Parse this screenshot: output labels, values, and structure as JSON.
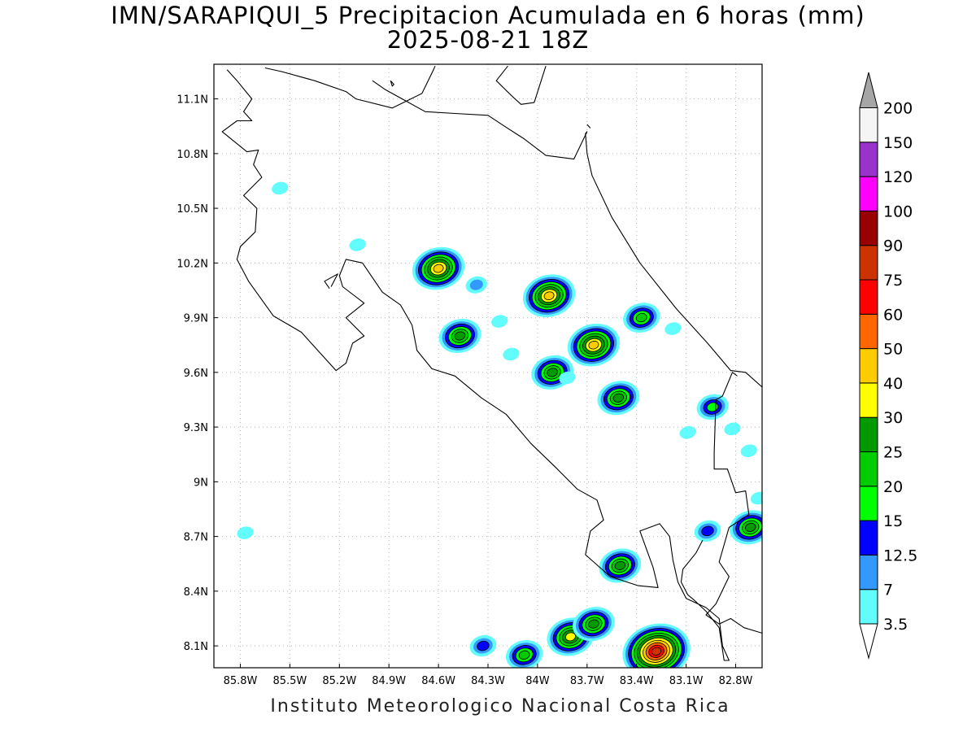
{
  "title": "IMN/SARAPIQUI_5 Precipitacion Acumulada en 6 horas (mm)",
  "subtitle": "2025-08-21 18Z",
  "footer": "Instituto Meteorologico Nacional Costa Rica",
  "map": {
    "lon_range": [
      -85.96,
      -82.64
    ],
    "lat_range": [
      7.98,
      11.29
    ],
    "grid": true,
    "lon_ticks": [
      {
        "value": -85.8,
        "label": "85.8W"
      },
      {
        "value": -85.5,
        "label": "85.5W"
      },
      {
        "value": -85.2,
        "label": "85.2W"
      },
      {
        "value": -84.9,
        "label": "84.9W"
      },
      {
        "value": -84.6,
        "label": "84.6W"
      },
      {
        "value": -84.3,
        "label": "84.3W"
      },
      {
        "value": -84.0,
        "label": "84W"
      },
      {
        "value": -83.7,
        "label": "83.7W"
      },
      {
        "value": -83.4,
        "label": "83.4W"
      },
      {
        "value": -83.1,
        "label": "83.1W"
      },
      {
        "value": -82.8,
        "label": "82.8W"
      }
    ],
    "lat_ticks": [
      {
        "value": 8.1,
        "label": "8.1N"
      },
      {
        "value": 8.4,
        "label": "8.4N"
      },
      {
        "value": 8.7,
        "label": "8.7N"
      },
      {
        "value": 9.0,
        "label": "9N"
      },
      {
        "value": 9.3,
        "label": "9.3N"
      },
      {
        "value": 9.6,
        "label": "9.6N"
      },
      {
        "value": 9.9,
        "label": "9.9N"
      },
      {
        "value": 10.2,
        "label": "10.2N"
      },
      {
        "value": 10.5,
        "label": "10.5N"
      },
      {
        "value": 10.8,
        "label": "10.8N"
      },
      {
        "value": 11.1,
        "label": "11.1N"
      }
    ],
    "coastline": [
      [
        [
          -85.88,
          11.26
        ],
        [
          -85.82,
          11.2
        ],
        [
          -85.73,
          11.1
        ],
        [
          -85.78,
          11.03
        ],
        [
          -85.73,
          10.98
        ],
        [
          -85.82,
          10.98
        ],
        [
          -85.91,
          10.92
        ],
        [
          -85.76,
          10.81
        ],
        [
          -85.69,
          10.82
        ],
        [
          -85.72,
          10.74
        ],
        [
          -85.67,
          10.67
        ],
        [
          -85.78,
          10.57
        ],
        [
          -85.7,
          10.5
        ],
        [
          -85.71,
          10.37
        ],
        [
          -85.8,
          10.29
        ],
        [
          -85.82,
          10.22
        ],
        [
          -85.75,
          10.1
        ],
        [
          -85.6,
          9.91
        ],
        [
          -85.43,
          9.82
        ],
        [
          -85.35,
          9.74
        ],
        [
          -85.22,
          9.61
        ],
        [
          -85.16,
          9.65
        ],
        [
          -85.12,
          9.76
        ],
        [
          -85.05,
          9.8
        ],
        [
          -85.16,
          9.9
        ],
        [
          -85.05,
          9.98
        ],
        [
          -85.18,
          10.07
        ],
        [
          -85.2,
          10.13
        ],
        [
          -85.16,
          10.22
        ],
        [
          -85.06,
          10.2
        ],
        [
          -84.94,
          10.04
        ],
        [
          -84.83,
          9.97
        ],
        [
          -84.76,
          9.86
        ],
        [
          -84.73,
          9.72
        ],
        [
          -84.64,
          9.62
        ],
        [
          -84.5,
          9.58
        ],
        [
          -84.34,
          9.46
        ],
        [
          -84.19,
          9.37
        ],
        [
          -84.04,
          9.21
        ],
        [
          -83.88,
          9.07
        ],
        [
          -83.76,
          8.96
        ],
        [
          -83.64,
          8.9
        ],
        [
          -83.6,
          8.79
        ],
        [
          -83.68,
          8.73
        ],
        [
          -83.71,
          8.6
        ],
        [
          -83.56,
          8.48
        ],
        [
          -83.39,
          8.43
        ],
        [
          -83.27,
          8.42
        ],
        [
          -83.3,
          8.53
        ],
        [
          -83.38,
          8.73
        ],
        [
          -83.26,
          8.77
        ],
        [
          -83.2,
          8.7
        ],
        [
          -83.18,
          8.57
        ],
        [
          -83.15,
          8.45
        ],
        [
          -83.1,
          8.36
        ],
        [
          -82.98,
          8.31
        ],
        [
          -82.9,
          8.25
        ],
        [
          -82.88,
          8.1
        ],
        [
          -82.84,
          8.02
        ],
        [
          -82.87,
          8.02
        ],
        [
          -82.9,
          8.2
        ],
        [
          -82.98,
          8.29
        ],
        [
          -83.05,
          8.35
        ],
        [
          -83.09,
          8.38
        ],
        [
          -83.13,
          8.45
        ],
        [
          -83.12,
          8.52
        ],
        [
          -83.04,
          8.61
        ],
        [
          -83.0,
          8.68
        ]
      ],
      [
        [
          -85.26,
          10.06
        ],
        [
          -85.29,
          10.1
        ],
        [
          -85.21,
          10.14
        ],
        [
          -85.25,
          10.07
        ]
      ],
      [
        [
          -85.0,
          11.2
        ],
        [
          -84.92,
          11.15
        ],
        [
          -84.78,
          11.08
        ],
        [
          -84.68,
          11.03
        ],
        [
          -84.5,
          11.02
        ],
        [
          -84.3,
          11.01
        ],
        [
          -84.2,
          10.95
        ],
        [
          -84.08,
          10.88
        ],
        [
          -83.95,
          10.79
        ],
        [
          -83.78,
          10.77
        ],
        [
          -83.7,
          10.92
        ],
        [
          -83.71,
          10.91
        ],
        [
          -83.7,
          10.8
        ],
        [
          -83.67,
          10.68
        ],
        [
          -83.55,
          10.45
        ],
        [
          -83.38,
          10.2
        ],
        [
          -83.16,
          9.95
        ],
        [
          -82.97,
          9.76
        ],
        [
          -82.83,
          9.61
        ],
        [
          -82.74,
          9.6
        ],
        [
          -82.64,
          9.52
        ]
      ],
      [
        [
          -85.65,
          11.27
        ],
        [
          -85.55,
          11.25
        ],
        [
          -85.35,
          11.2
        ],
        [
          -85.16,
          11.14
        ],
        [
          -85.1,
          11.1
        ],
        [
          -84.88,
          11.05
        ],
        [
          -84.7,
          11.13
        ],
        [
          -84.63,
          11.26
        ],
        [
          -84.62,
          11.28
        ]
      ],
      [
        [
          -84.18,
          11.28
        ],
        [
          -84.25,
          11.2
        ],
        [
          -84.16,
          11.12
        ],
        [
          -84.1,
          11.07
        ],
        [
          -84.02,
          11.08
        ],
        [
          -83.95,
          11.28
        ]
      ],
      [
        [
          -83.7,
          10.96
        ],
        [
          -83.68,
          10.94
        ]
      ],
      [
        [
          -84.89,
          11.2
        ],
        [
          -84.87,
          11.18
        ],
        [
          -84.88,
          11.17
        ],
        [
          -84.89,
          11.2
        ]
      ],
      [
        [
          -82.79,
          9.58
        ],
        [
          -82.82,
          9.6
        ],
        [
          -82.88,
          9.47
        ],
        [
          -82.92,
          9.45
        ],
        [
          -82.93,
          9.16
        ],
        [
          -82.93,
          9.07
        ],
        [
          -82.85,
          9.07
        ],
        [
          -82.8,
          8.94
        ],
        [
          -82.74,
          8.95
        ],
        [
          -82.72,
          8.82
        ],
        [
          -82.84,
          8.75
        ],
        [
          -82.9,
          8.56
        ],
        [
          -82.84,
          8.48
        ],
        [
          -82.92,
          8.33
        ],
        [
          -82.98,
          8.27
        ],
        [
          -82.9,
          8.22
        ],
        [
          -82.83,
          8.25
        ],
        [
          -82.75,
          8.2
        ],
        [
          -82.64,
          8.17
        ]
      ]
    ]
  },
  "colorbar": {
    "levels": [
      "3.5",
      "7",
      "12.5",
      "15",
      "20",
      "25",
      "30",
      "40",
      "50",
      "60",
      "75",
      "90",
      "100",
      "120",
      "150",
      "200"
    ],
    "colors": [
      "#62fcfc",
      "#3399ff",
      "#0000ff",
      "#00ff00",
      "#00cc00",
      "#009900",
      "#ffff00",
      "#ffcc00",
      "#ff6600",
      "#ff0000",
      "#cc3300",
      "#990000",
      "#ff00ff",
      "#9933cc",
      "#f5f5f5",
      "#a6a6a6"
    ]
  },
  "rain_cells": [
    {
      "lon": -84.6,
      "lat": 10.17,
      "value": 40
    },
    {
      "lon": -83.93,
      "lat": 10.02,
      "value": 40
    },
    {
      "lon": -83.66,
      "lat": 9.75,
      "value": 40
    },
    {
      "lon": -84.47,
      "lat": 9.8,
      "value": 25
    },
    {
      "lon": -83.91,
      "lat": 9.6,
      "value": 25
    },
    {
      "lon": -83.37,
      "lat": 9.9,
      "value": 20
    },
    {
      "lon": -83.51,
      "lat": 9.46,
      "value": 25
    },
    {
      "lon": -82.94,
      "lat": 9.41,
      "value": 15
    },
    {
      "lon": -82.71,
      "lat": 8.75,
      "value": 25
    },
    {
      "lon": -82.97,
      "lat": 8.73,
      "value": 12.5
    },
    {
      "lon": -83.5,
      "lat": 8.54,
      "value": 25
    },
    {
      "lon": -83.8,
      "lat": 8.15,
      "value": 30
    },
    {
      "lon": -83.66,
      "lat": 8.22,
      "value": 25
    },
    {
      "lon": -83.28,
      "lat": 8.07,
      "value": 75
    },
    {
      "lon": -84.08,
      "lat": 8.05,
      "value": 20
    },
    {
      "lon": -84.33,
      "lat": 8.1,
      "value": 12.5
    },
    {
      "lon": -84.37,
      "lat": 10.08,
      "value": 7
    },
    {
      "lon": -84.23,
      "lat": 9.88,
      "value": 3.5
    },
    {
      "lon": -85.09,
      "lat": 10.3,
      "value": 3.5
    },
    {
      "lon": -85.56,
      "lat": 10.61,
      "value": 3.5
    },
    {
      "lon": -85.77,
      "lat": 8.72,
      "value": 3.5
    },
    {
      "lon": -84.16,
      "lat": 9.7,
      "value": 3.5
    },
    {
      "lon": -83.82,
      "lat": 9.57,
      "value": 3.5
    },
    {
      "lon": -83.18,
      "lat": 9.84,
      "value": 3.5
    },
    {
      "lon": -82.82,
      "lat": 9.29,
      "value": 3.5
    },
    {
      "lon": -82.72,
      "lat": 9.17,
      "value": 3.5
    },
    {
      "lon": -82.66,
      "lat": 8.91,
      "value": 3.5
    },
    {
      "lon": -83.09,
      "lat": 9.27,
      "value": 3.5
    }
  ]
}
